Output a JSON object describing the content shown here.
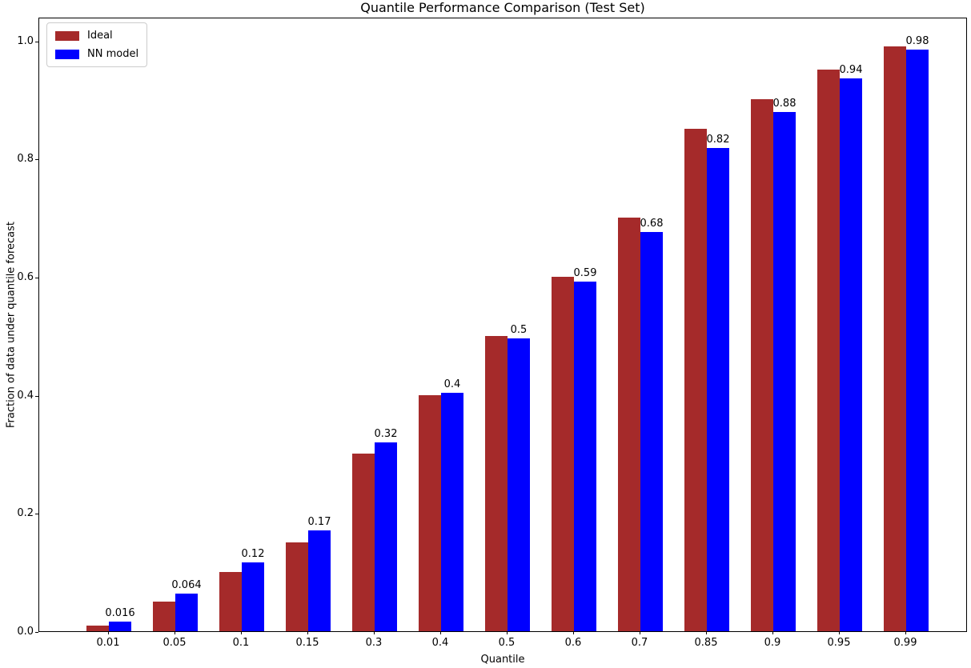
{
  "figure": {
    "title": "Quantile Performance Comparison (Test Set)",
    "xlabel": "Quantile",
    "ylabel": "Fraction of data under quantile forecast"
  },
  "chart_data": {
    "type": "bar",
    "title": "Quantile Performance Comparison (Test Set)",
    "xlabel": "Quantile",
    "ylabel": "Fraction of data under quantile forecast",
    "categories": [
      "0.01",
      "0.05",
      "0.1",
      "0.15",
      "0.3",
      "0.4",
      "0.5",
      "0.6",
      "0.7",
      "0.85",
      "0.9",
      "0.95",
      "0.99"
    ],
    "series": [
      {
        "name": "Ideal",
        "color": "#a52a2a",
        "values": [
          0.01,
          0.05,
          0.1,
          0.15,
          0.3,
          0.4,
          0.5,
          0.6,
          0.7,
          0.85,
          0.9,
          0.95,
          0.99
        ]
      },
      {
        "name": "NN model",
        "color": "#0000ff",
        "values": [
          0.016,
          0.064,
          0.117,
          0.171,
          0.32,
          0.403,
          0.496,
          0.592,
          0.676,
          0.818,
          0.879,
          0.936,
          0.984
        ],
        "bar_labels": [
          "0.016",
          "0.064",
          "0.12",
          "0.17",
          "0.32",
          "0.4",
          "0.5",
          "0.59",
          "0.68",
          "0.82",
          "0.88",
          "0.94",
          "0.98"
        ]
      }
    ],
    "yticks": [
      "0.0",
      "0.2",
      "0.4",
      "0.6",
      "0.8",
      "1.0"
    ],
    "ylim": [
      0,
      1.04
    ],
    "grid": false,
    "legend_position": "upper-left",
    "background_color": "#ffffff",
    "text_color": "#000000"
  }
}
